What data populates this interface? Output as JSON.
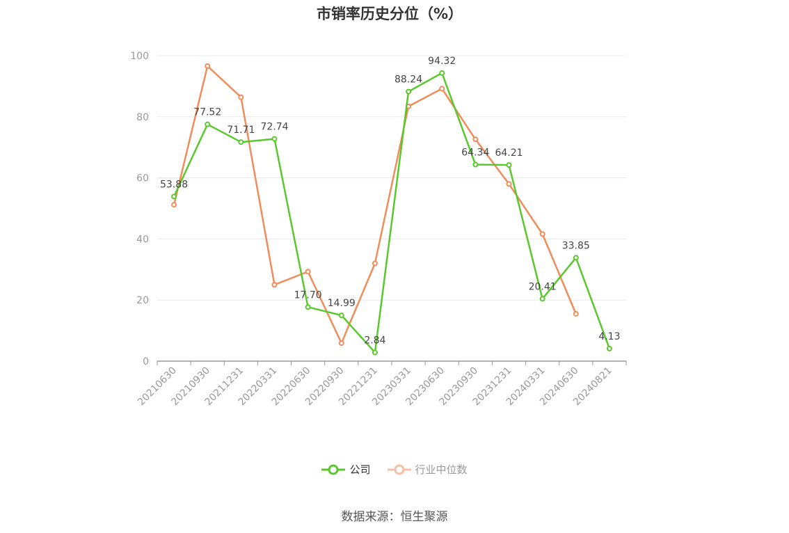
{
  "chart_data": {
    "type": "line",
    "title": "市销率历史分位（%）",
    "categories": [
      "20210630",
      "20210930",
      "20211231",
      "20220331",
      "20220630",
      "20220930",
      "20221231",
      "20230331",
      "20230630",
      "20230930",
      "20231231",
      "20240331",
      "20240630",
      "20240821"
    ],
    "ylim": [
      0,
      100
    ],
    "yticks": [
      0,
      20,
      40,
      60,
      80,
      100
    ],
    "grid": true,
    "legend_position": "bottom",
    "series": [
      {
        "name": "公司",
        "color": "#5ac82d",
        "values": [
          53.88,
          77.52,
          71.71,
          72.74,
          17.7,
          14.99,
          2.84,
          88.24,
          94.32,
          64.34,
          64.21,
          20.41,
          33.85,
          4.13
        ],
        "labels": [
          "53.88",
          "77.52",
          "71.71",
          "72.74",
          "17.70",
          "14.99",
          "2.84",
          "88.24",
          "94.32",
          "64.34",
          "64.21",
          "20.41",
          "33.85",
          "4.13"
        ]
      },
      {
        "name": "行业中位数",
        "color": "#f08c5a",
        "values": [
          51.2,
          96.6,
          86.4,
          25.0,
          29.3,
          5.9,
          32.0,
          83.4,
          89.2,
          72.6,
          58.0,
          41.6,
          15.5,
          null
        ]
      }
    ]
  },
  "source": "数据来源：恒生聚源"
}
